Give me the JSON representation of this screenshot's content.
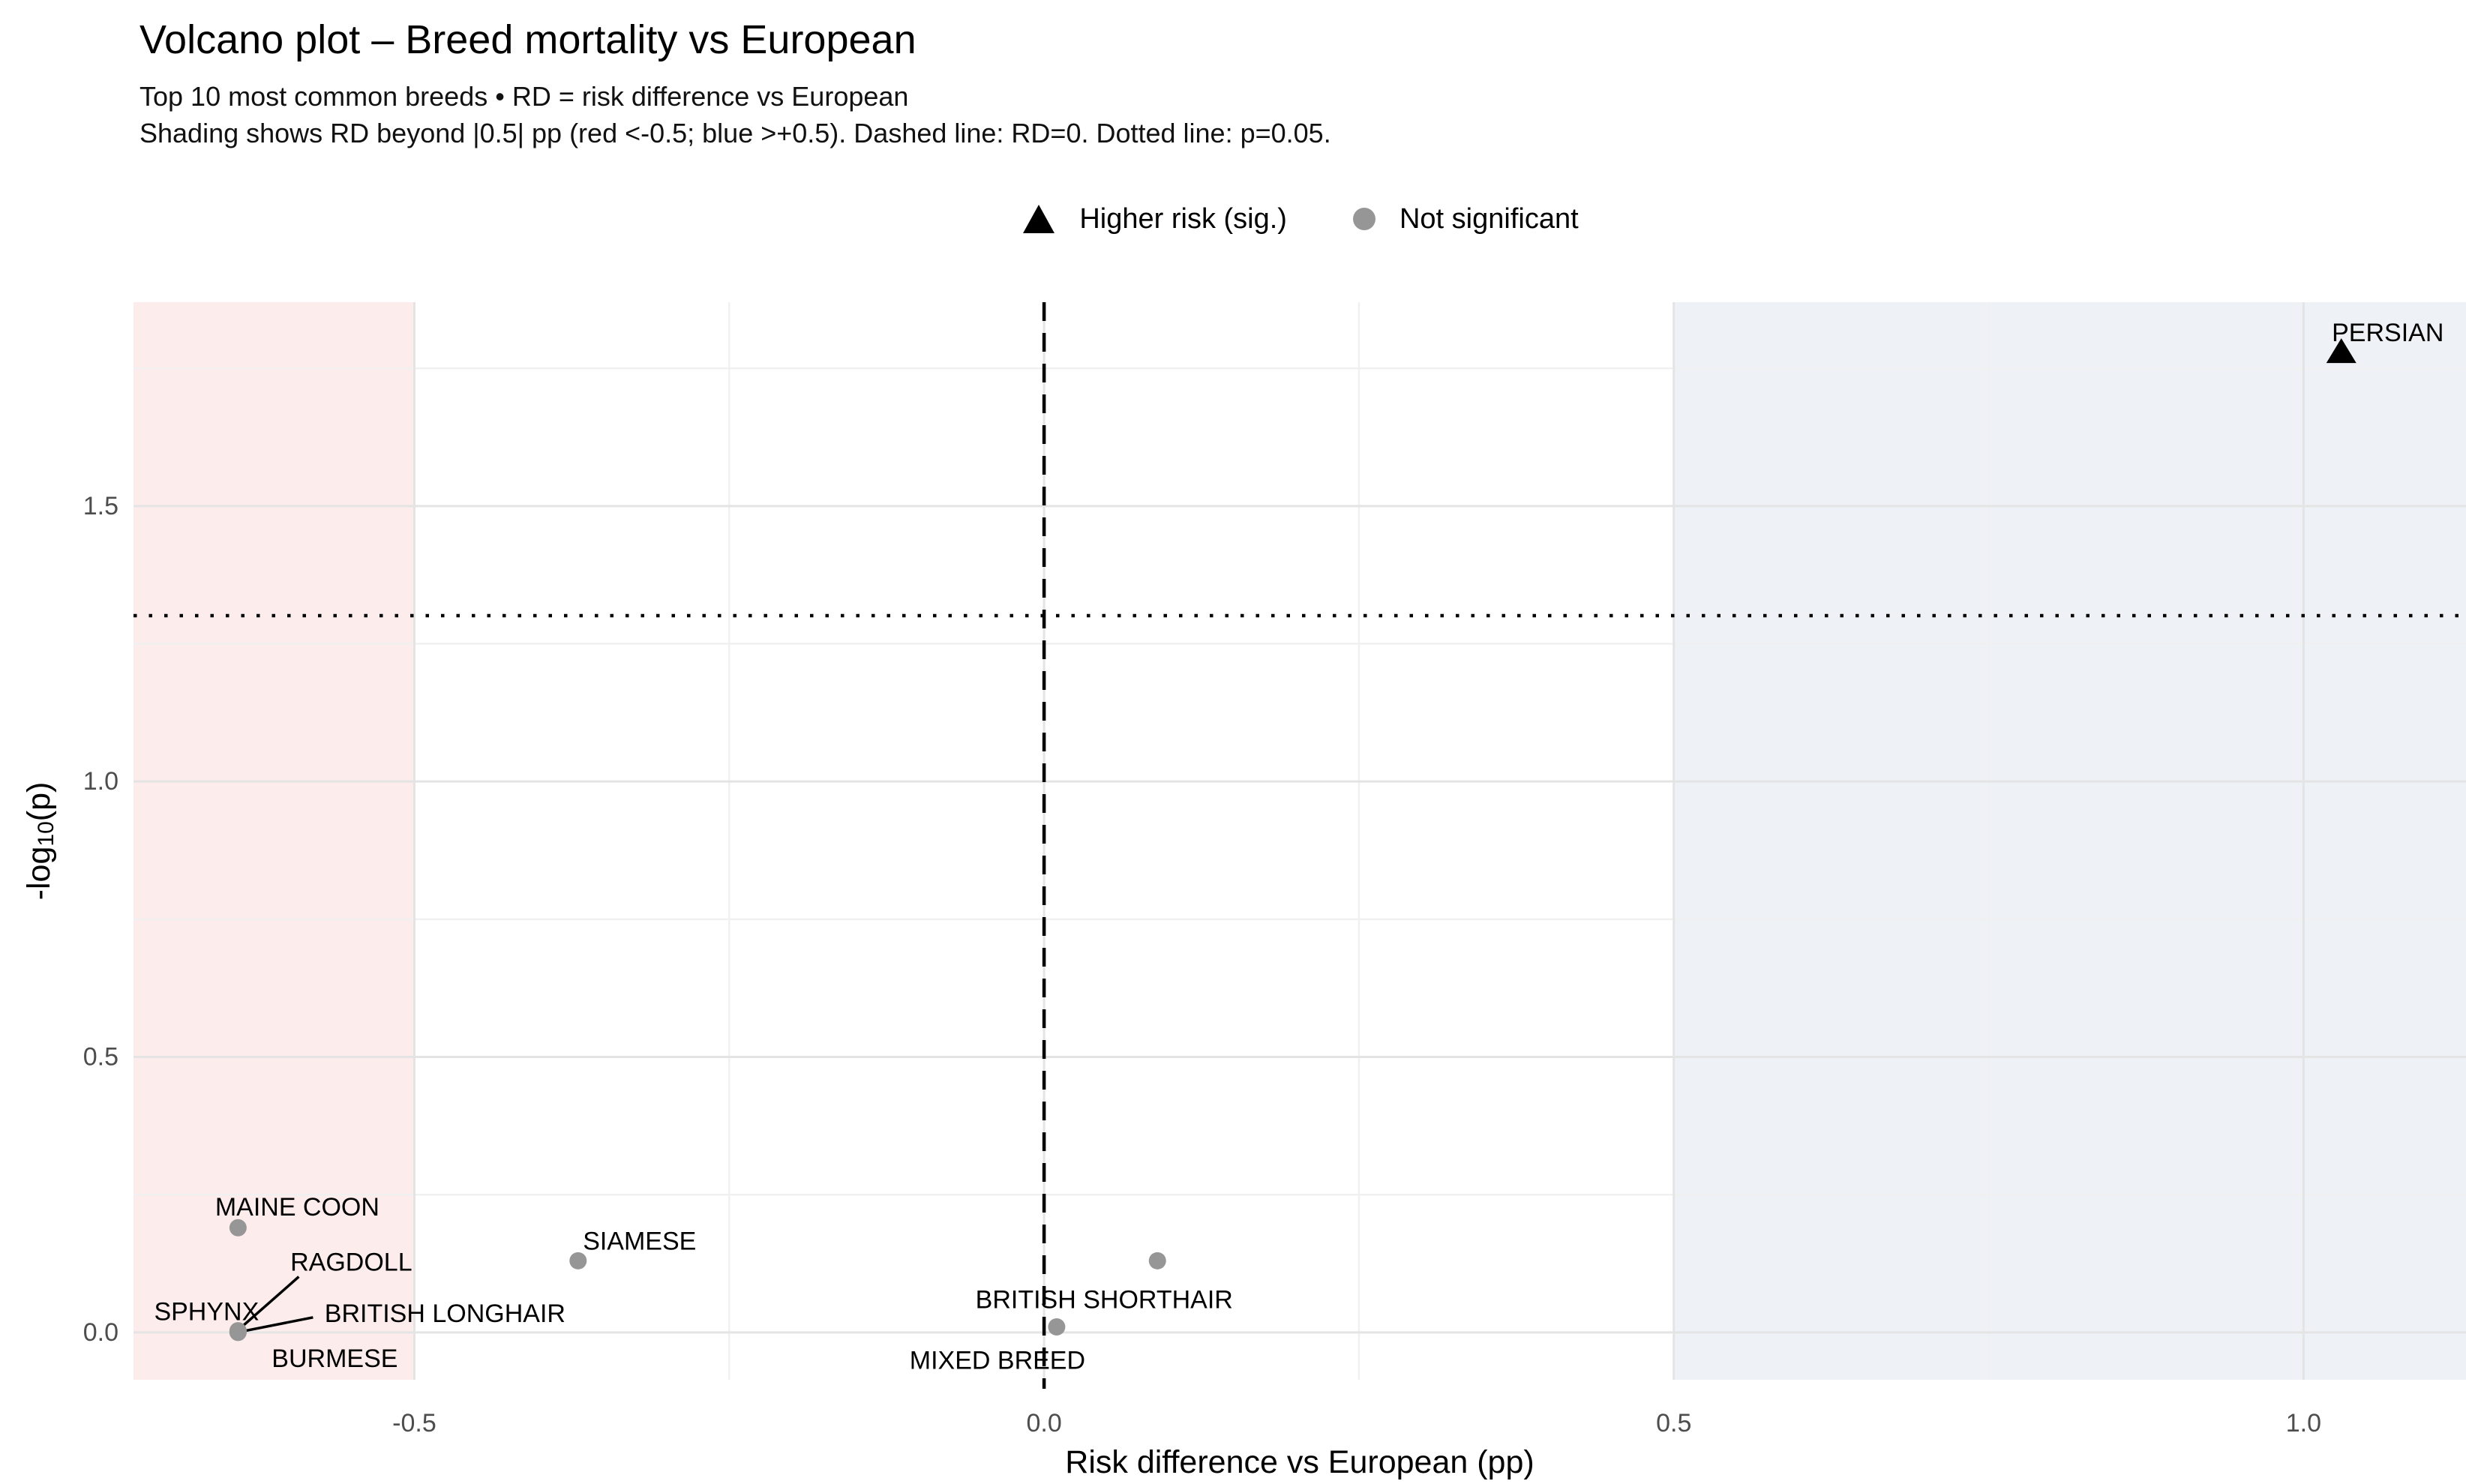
{
  "header": {
    "title": "Volcano plot – Breed mortality vs European",
    "subtitle_line1": "Top 10 most common breeds • RD = risk difference vs European",
    "subtitle_line2": "Shading shows RD beyond |0.5| pp (red <-0.5; blue >+0.5). Dashed line: RD=0. Dotted line: p=0.05."
  },
  "legend": {
    "items": [
      {
        "label": "Higher risk (sig.)",
        "marker": "triangle-icon",
        "color": "#000000"
      },
      {
        "label": "Not significant",
        "marker": "circle-icon",
        "color": "#969696"
      }
    ]
  },
  "chart_data": {
    "type": "scatter",
    "title": "Volcano plot – Breed mortality vs European",
    "subtitle": [
      "Top 10 most common breeds • RD = risk difference vs European",
      "Shading shows RD beyond |0.5| pp (red <-0.5; blue >+0.5). Dashed line: RD=0. Dotted line: p=0.05."
    ],
    "xlabel": "Risk difference vs European (pp)",
    "ylabel": "-log10(p)",
    "ylabel_parts": {
      "pre": "-log",
      "sub": "10",
      "post": "(p)"
    },
    "xlim": [
      -0.723,
      1.129
    ],
    "ylim": [
      -0.086,
      1.87
    ],
    "x_major_ticks": [
      -0.5,
      0.0,
      0.5,
      1.0
    ],
    "x_tick_labels": [
      "-0.5",
      "0.0",
      "0.5",
      "1.0"
    ],
    "x_minor_ticks": [
      -0.25,
      0.25,
      0.75
    ],
    "y_major_ticks": [
      0.0,
      0.5,
      1.0,
      1.5
    ],
    "y_tick_labels": [
      "0.0",
      "0.5",
      "1.0",
      "1.5"
    ],
    "y_minor_ticks": [
      0.25,
      0.75,
      1.25,
      1.75
    ],
    "grid": true,
    "legend_position": "top-center",
    "shading": {
      "red_region_below_x": -0.5,
      "blue_region_above_x": 0.5,
      "red_color": "#fcecec",
      "blue_color": "#eef2f6"
    },
    "ref_lines": {
      "dashed_vline_x": 0.0,
      "dotted_hline_y": 1.301
    },
    "points": [
      {
        "label": "PERSIAN",
        "x": 1.03,
        "y": 1.78,
        "significant": true,
        "marker": "triangle",
        "label_offset": [
          62,
          -25
        ]
      },
      {
        "label": "MAINE COON",
        "x": -0.64,
        "y": 0.19,
        "significant": false,
        "marker": "circle",
        "label_offset": [
          79,
          -27
        ]
      },
      {
        "label": "SIAMESE",
        "x": -0.37,
        "y": 0.13,
        "significant": false,
        "marker": "circle",
        "label_offset": [
          82,
          -26
        ]
      },
      {
        "label": "RAGDOLL",
        "x": -0.64,
        "y": 0.003,
        "significant": false,
        "marker": "circle",
        "label_offset": [
          151,
          -91
        ],
        "leader": {
          "from": [
            81,
            -72
          ],
          "to": [
            6,
            -6
          ]
        }
      },
      {
        "label": "SPHYNX",
        "x": -0.64,
        "y": 0.002,
        "significant": false,
        "marker": "circle",
        "label_offset": [
          -42,
          -26
        ]
      },
      {
        "label": "BRITISH LONGHAIR",
        "x": -0.64,
        "y": 0.0,
        "significant": false,
        "marker": "circle",
        "label_offset": [
          276,
          -25
        ],
        "leader": {
          "from": [
            100,
            -20
          ],
          "to": [
            9,
            -2
          ]
        }
      },
      {
        "label": "BURMESE",
        "x": -0.64,
        "y": 0.001,
        "significant": false,
        "marker": "circle",
        "label_offset": [
          129,
          36
        ]
      },
      {
        "label": "BRITISH SHORTHAIR",
        "x": 0.09,
        "y": 0.13,
        "significant": false,
        "marker": "circle",
        "label_offset": [
          -71,
          52
        ]
      },
      {
        "label": "MIXED BREED",
        "x": 0.01,
        "y": 0.01,
        "significant": false,
        "marker": "circle",
        "label_offset": [
          -79,
          45
        ]
      }
    ],
    "colors": {
      "sig_marker": "#000000",
      "nonsig_marker": "#969696",
      "major_grid": "#e4e4e4",
      "minor_grid": "#f0f0f0",
      "tick_label": "#4d4d4d",
      "axis_title": "#000000",
      "point_label": "#000000",
      "ref_line": "#000000"
    }
  }
}
